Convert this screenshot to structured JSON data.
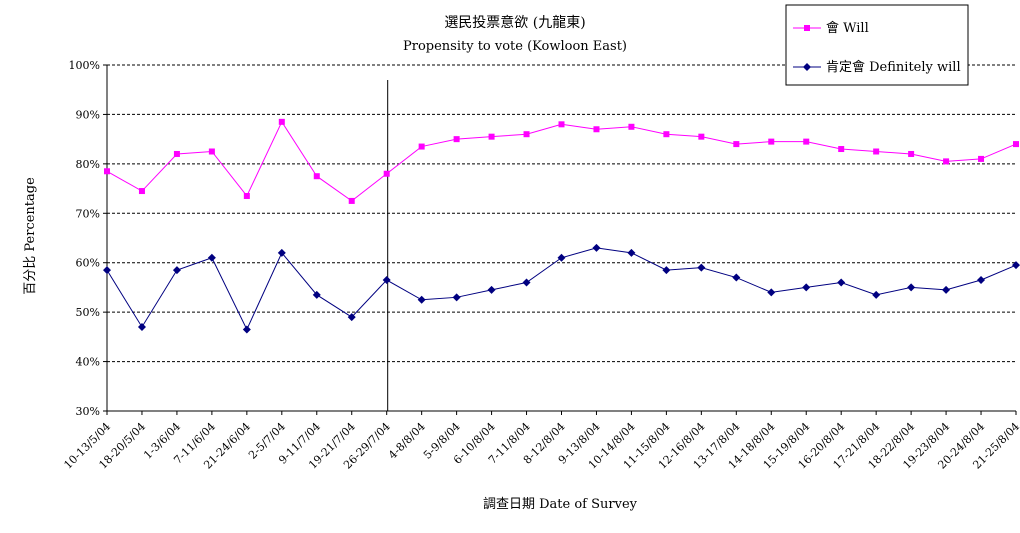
{
  "chart_data": {
    "type": "line",
    "title": "選民投票意欲 (九龍東)",
    "subtitle": "Propensity to vote (Kowloon East)",
    "xlabel": "調查日期 Date of Survey",
    "ylabel": "百分比 Percentage",
    "ylim": [
      30,
      100
    ],
    "yticks": [
      "30%",
      "40%",
      "50%",
      "60%",
      "70%",
      "80%",
      "90%",
      "100%"
    ],
    "grid": "horizontal dashed",
    "legend_position": "top-right",
    "categories": [
      "10-13/5/04",
      "18-20/5/04",
      "1-3/6/04",
      "7-11/6/04",
      "21-24/6/04",
      "2-5/7/04",
      "9-11/7/04",
      "19-21/7/04",
      "26-29/7/04",
      "4-8/8/04",
      "5-9/8/04",
      "6-10/8/04",
      "7-11/8/04",
      "8-12/8/04",
      "9-13/8/04",
      "10-14/8/04",
      "11-15/8/04",
      "12-16/8/04",
      "13-17/8/04",
      "14-18/8/04",
      "15-19/8/04",
      "16-20/8/04",
      "17-21/8/04",
      "18-22/8/04",
      "19-23/8/04",
      "20-24/8/04",
      "21-25/8/04"
    ],
    "series": [
      {
        "name": "會 Will",
        "color": "#ff00ff",
        "marker": "square",
        "values": [
          78.5,
          74.5,
          82,
          82.5,
          73.5,
          88.5,
          77.5,
          72.5,
          78,
          83.5,
          85,
          85.5,
          86,
          88,
          87,
          87.5,
          86,
          85.5,
          84,
          84.5,
          84.5,
          83,
          82.5,
          82,
          80.5,
          81,
          84
        ]
      },
      {
        "name": "肯定會 Definitely will",
        "color": "#000080",
        "marker": "diamond",
        "values": [
          58.5,
          47,
          58.5,
          61,
          46.5,
          62,
          53.5,
          49,
          56.5,
          52.5,
          53,
          54.5,
          56,
          61,
          63,
          62,
          58.5,
          59,
          57,
          54,
          55,
          56,
          53.5,
          55,
          54.5,
          56.5,
          59.5
        ]
      }
    ],
    "annotation": "vertical line after 26-29/7/04"
  }
}
